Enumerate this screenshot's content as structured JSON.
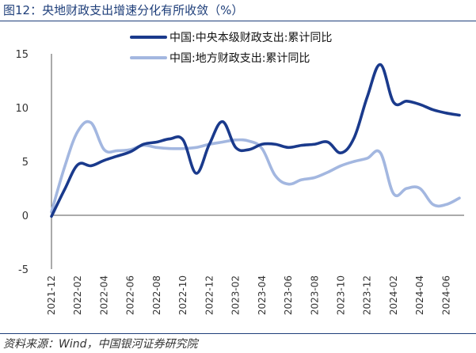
{
  "header": {
    "title": "图12：央地财政支出增速分化有所收敛（%）"
  },
  "footer": {
    "source": "资料来源：Wind，中国银河证券研究院"
  },
  "chart_data": {
    "type": "line",
    "title": "图12：央地财政支出增速分化有所收敛（%）",
    "xlabel": "",
    "ylabel": "",
    "ylim": [
      -5,
      15
    ],
    "yticks": [
      -5,
      0,
      5,
      10,
      15
    ],
    "grid": false,
    "legend_position": "top-right",
    "x": [
      "2021-12",
      "2022-01",
      "2022-02",
      "2022-03",
      "2022-04",
      "2022-05",
      "2022-06",
      "2022-07",
      "2022-08",
      "2022-09",
      "2022-10",
      "2022-11",
      "2022-12",
      "2023-01",
      "2023-02",
      "2023-03",
      "2023-04",
      "2023-05",
      "2023-06",
      "2023-07",
      "2023-08",
      "2023-09",
      "2023-10",
      "2023-11",
      "2023-12",
      "2024-01",
      "2024-02",
      "2024-03",
      "2024-04",
      "2024-05",
      "2024-06",
      "2024-07"
    ],
    "x_tick_labels": [
      "2021-12",
      "2022-02",
      "2022-04",
      "2022-06",
      "2022-08",
      "2022-10",
      "2022-12",
      "2023-02",
      "2023-04",
      "2023-06",
      "2023-08",
      "2023-10",
      "2023-12",
      "2024-02",
      "2024-04",
      "2024-06"
    ],
    "series": [
      {
        "name": "中国:中央本级财政支出:累计同比",
        "color": "#1a3a8c",
        "values": [
          -0.1,
          2.4,
          4.7,
          4.6,
          5.1,
          5.5,
          5.9,
          6.6,
          6.8,
          7.1,
          7.0,
          3.9,
          6.6,
          8.7,
          6.3,
          6.1,
          6.6,
          6.6,
          6.3,
          6.5,
          6.6,
          6.8,
          5.8,
          7.2,
          11.0,
          14.0,
          10.5,
          10.6,
          10.3,
          9.8,
          9.5,
          9.3
        ]
      },
      {
        "name": "中国:地方财政支出:累计同比",
        "color": "#a3b7e0",
        "values": [
          0.3,
          4.5,
          7.8,
          8.6,
          6.1,
          6.0,
          6.1,
          6.5,
          6.3,
          6.2,
          6.2,
          6.3,
          6.6,
          6.8,
          7.0,
          6.9,
          6.2,
          3.7,
          2.9,
          3.3,
          3.5,
          4.0,
          4.6,
          5.0,
          5.3,
          5.8,
          2.0,
          2.5,
          2.5,
          1.0,
          1.0,
          1.6
        ]
      }
    ]
  }
}
